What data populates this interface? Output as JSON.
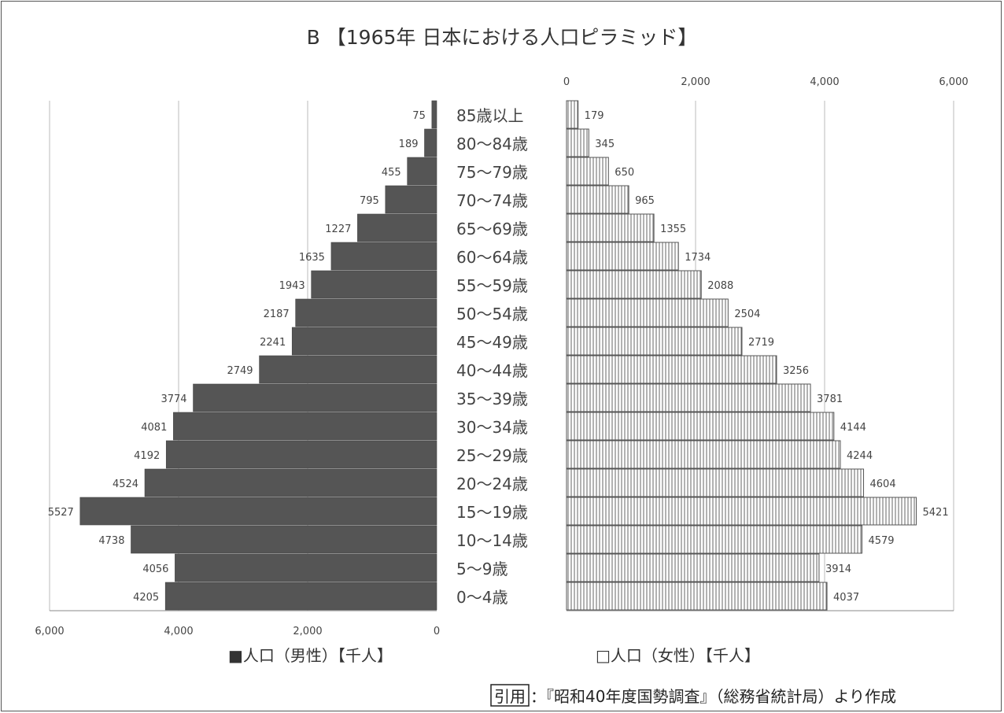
{
  "chart_data": {
    "type": "bar",
    "title": "B 【1965年 日本における人口ピラミッド】",
    "categories": [
      "85歳以上",
      "80～84歳",
      "75～79歳",
      "70～74歳",
      "65～69歳",
      "60～64歳",
      "55～59歳",
      "50～54歳",
      "45～49歳",
      "40～44歳",
      "35～39歳",
      "30～34歳",
      "25～29歳",
      "20～24歳",
      "15～19歳",
      "10～14歳",
      "5～9歳",
      "0～4歳"
    ],
    "series": [
      {
        "name": "■人口（男性）【千人】",
        "color": "#555555",
        "values": [
          75,
          189,
          455,
          795,
          1227,
          1635,
          1943,
          2187,
          2241,
          2749,
          3774,
          4081,
          4192,
          4524,
          5527,
          4738,
          4056,
          4205
        ]
      },
      {
        "name": "□人口（女性）【千人】",
        "color": "#ffffff",
        "values": [
          179,
          345,
          650,
          965,
          1355,
          1734,
          2088,
          2504,
          2719,
          3256,
          3781,
          4144,
          4244,
          4604,
          5421,
          4579,
          3914,
          4037
        ]
      }
    ],
    "male_axis": {
      "ticks": [
        "6,000",
        "4,000",
        "2,000",
        "0"
      ],
      "range": [
        6000,
        0
      ]
    },
    "female_axis": {
      "ticks": [
        "0",
        "2,000",
        "4,000",
        "6,000"
      ],
      "range": [
        0,
        6000
      ]
    },
    "grid": true,
    "legend_position": "bottom"
  },
  "source": {
    "boxed_label": "引用",
    "text": "：『昭和40年度国勢調査』（総務省統計局）より作成"
  }
}
